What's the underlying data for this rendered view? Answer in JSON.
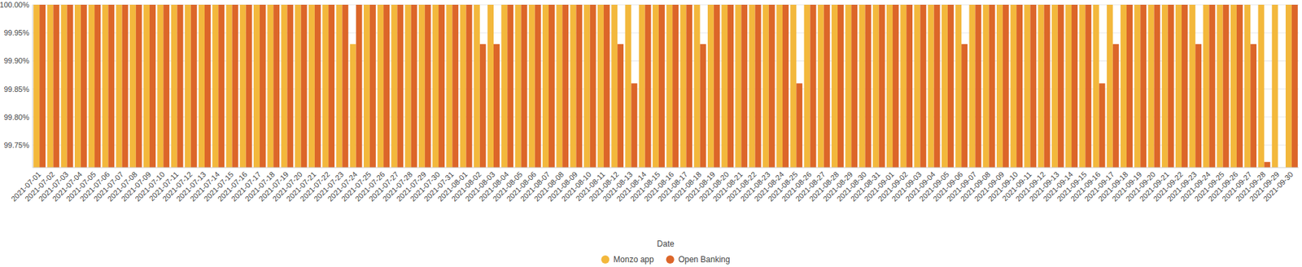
{
  "chart_data": {
    "type": "bar",
    "x_label": "Date",
    "categories": [
      "2021-07-01",
      "2021-07-02",
      "2021-07-03",
      "2021-07-04",
      "2021-07-05",
      "2021-07-06",
      "2021-07-07",
      "2021-07-08",
      "2021-07-09",
      "2021-07-10",
      "2021-07-11",
      "2021-07-12",
      "2021-07-13",
      "2021-07-14",
      "2021-07-15",
      "2021-07-16",
      "2021-07-17",
      "2021-07-18",
      "2021-07-19",
      "2021-07-20",
      "2021-07-21",
      "2021-07-22",
      "2021-07-23",
      "2021-07-24",
      "2021-07-25",
      "2021-07-26",
      "2021-07-27",
      "2021-07-28",
      "2021-07-29",
      "2021-07-30",
      "2021-07-31",
      "2021-08-01",
      "2021-08-02",
      "2021-08-03",
      "2021-08-04",
      "2021-08-05",
      "2021-08-06",
      "2021-08-07",
      "2021-08-08",
      "2021-08-09",
      "2021-08-10",
      "2021-08-11",
      "2021-08-12",
      "2021-08-13",
      "2021-08-14",
      "2021-08-15",
      "2021-08-16",
      "2021-08-17",
      "2021-08-18",
      "2021-08-19",
      "2021-08-20",
      "2021-08-21",
      "2021-08-22",
      "2021-08-23",
      "2021-08-24",
      "2021-08-25",
      "2021-08-26",
      "2021-08-27",
      "2021-08-28",
      "2021-08-29",
      "2021-08-30",
      "2021-08-31",
      "2021-09-01",
      "2021-09-02",
      "2021-09-03",
      "2021-09-04",
      "2021-09-05",
      "2021-09-06",
      "2021-09-07",
      "2021-09-08",
      "2021-09-09",
      "2021-09-10",
      "2021-09-11",
      "2021-09-12",
      "2021-09-13",
      "2021-09-14",
      "2021-09-15",
      "2021-09-16",
      "2021-09-17",
      "2021-09-18",
      "2021-09-19",
      "2021-09-20",
      "2021-09-21",
      "2021-09-22",
      "2021-09-23",
      "2021-09-24",
      "2021-09-25",
      "2021-09-26",
      "2021-09-27",
      "2021-09-28",
      "2021-09-29",
      "2021-09-30"
    ],
    "series": [
      {
        "name": "Monzo app",
        "color": "#f3b83c",
        "values": [
          100,
          100,
          100,
          100,
          100,
          100,
          100,
          100,
          100,
          100,
          100,
          100,
          100,
          100,
          100,
          100,
          100,
          100,
          100,
          100,
          100,
          100,
          100,
          99.93,
          100,
          100,
          100,
          100,
          100,
          100,
          100,
          100,
          100,
          100,
          100,
          100,
          100,
          100,
          100,
          100,
          100,
          100,
          100,
          100,
          100,
          100,
          100,
          100,
          100,
          100,
          100,
          100,
          100,
          100,
          100,
          100,
          100,
          100,
          100,
          100,
          100,
          100,
          100,
          100,
          100,
          100,
          100,
          100,
          100,
          100,
          100,
          100,
          100,
          100,
          100,
          100,
          100,
          100,
          100,
          100,
          100,
          100,
          100,
          100,
          100,
          100,
          100,
          100,
          100,
          100,
          100,
          100
        ]
      },
      {
        "name": "Open Banking",
        "color": "#dc6629",
        "values": [
          100,
          100,
          100,
          100,
          100,
          100,
          100,
          100,
          100,
          100,
          100,
          100,
          100,
          100,
          100,
          100,
          100,
          100,
          100,
          100,
          100,
          100,
          100,
          100,
          100,
          100,
          100,
          100,
          100,
          100,
          100,
          100,
          99.93,
          99.93,
          100,
          100,
          100,
          100,
          100,
          100,
          100,
          100,
          99.93,
          99.86,
          100,
          100,
          100,
          100,
          99.93,
          100,
          100,
          100,
          100,
          100,
          100,
          99.86,
          100,
          100,
          100,
          100,
          100,
          100,
          100,
          100,
          100,
          100,
          100,
          99.93,
          100,
          100,
          100,
          100,
          100,
          100,
          100,
          100,
          100,
          99.86,
          99.93,
          100,
          100,
          100,
          100,
          100,
          99.93,
          100,
          100,
          100,
          99.93,
          99.72,
          null,
          100
        ]
      }
    ],
    "ylim": [
      99.71,
      100
    ],
    "yticks": [
      {
        "value": 99.75,
        "label": "99.75%"
      },
      {
        "value": 99.8,
        "label": "99.80%"
      },
      {
        "value": 99.85,
        "label": "99.85%"
      },
      {
        "value": 99.9,
        "label": "99.90%"
      },
      {
        "value": 99.95,
        "label": "99.95%"
      },
      {
        "value": 100,
        "label": "100.00%"
      }
    ],
    "grid": true,
    "legend": "bottom"
  }
}
